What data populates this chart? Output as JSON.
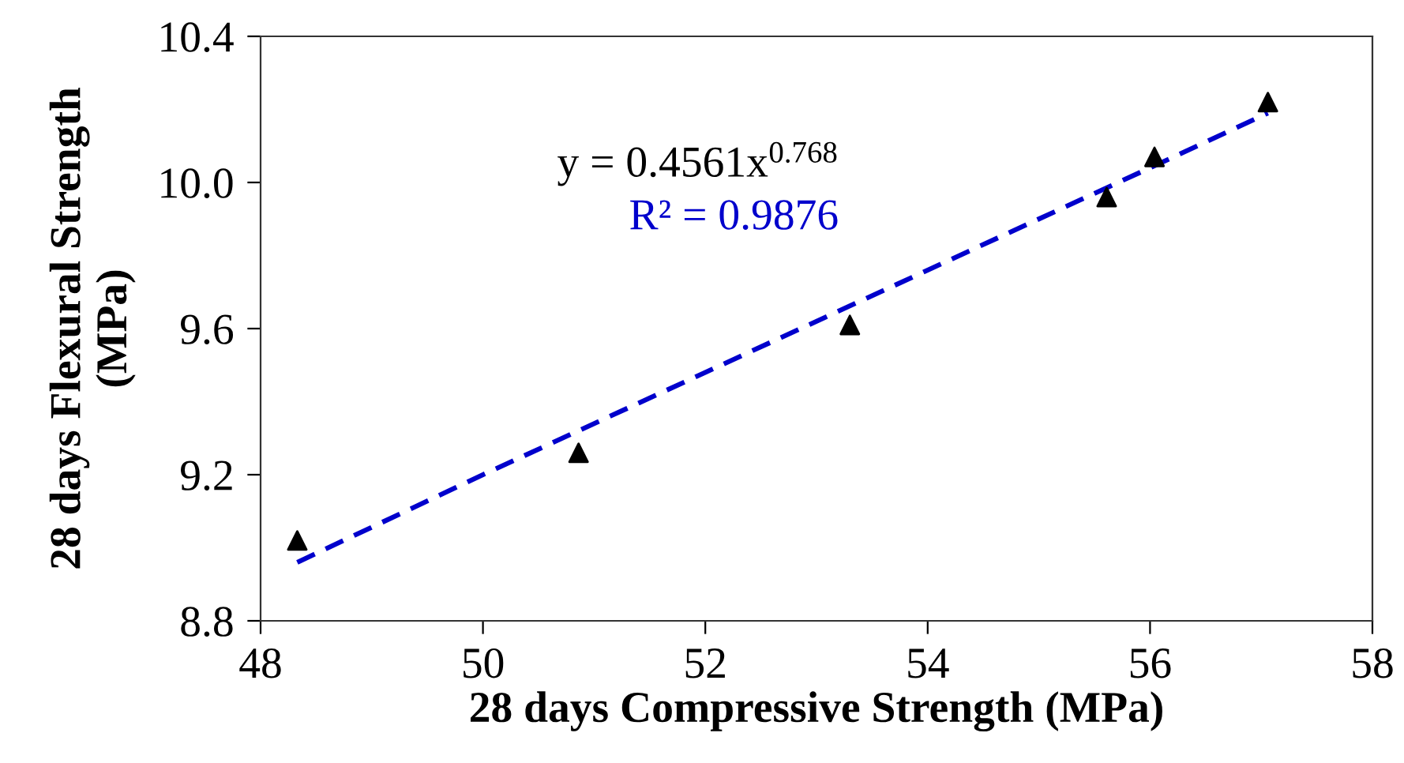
{
  "chart_data": {
    "type": "scatter",
    "xlabel": "28 days Compressive Strength (MPa)",
    "ylabel": "28 days Flexural Strength\n(MPa)",
    "series": [
      {
        "color": "#000000",
        "marker": "triangle",
        "x": [
          48.33,
          50.86,
          53.3,
          55.61,
          56.04,
          57.06
        ],
        "values": [
          9.02,
          9.26,
          9.61,
          9.96,
          10.07,
          10.22
        ]
      },
      {
        "type": "line",
        "color": "#0000cc",
        "line_style": "dashed",
        "marker": "none",
        "x": [
          48.33,
          50,
          52,
          54,
          56,
          57.06
        ],
        "values": [
          8.96,
          9.2,
          9.48,
          9.76,
          10.04,
          10.19
        ]
      }
    ],
    "annotations": [
      "y = 0.4561x$^{0.768}$",
      "R² = 0.9876"
    ],
    "xlim": [
      48,
      58
    ],
    "xticks": [
      48,
      50,
      52,
      54,
      56,
      58
    ],
    "ylim": [
      8.8,
      10.4
    ],
    "yticks": [
      {
        "value": 8.8,
        "label": "8.8"
      },
      {
        "value": 9.2,
        "label": "9.2"
      },
      {
        "value": 9.6,
        "label": "9.6"
      },
      {
        "value": 10.0,
        "label": "10.0"
      },
      {
        "value": 10.4,
        "label": "10.4"
      }
    ],
    "grid": false,
    "legend": false
  }
}
